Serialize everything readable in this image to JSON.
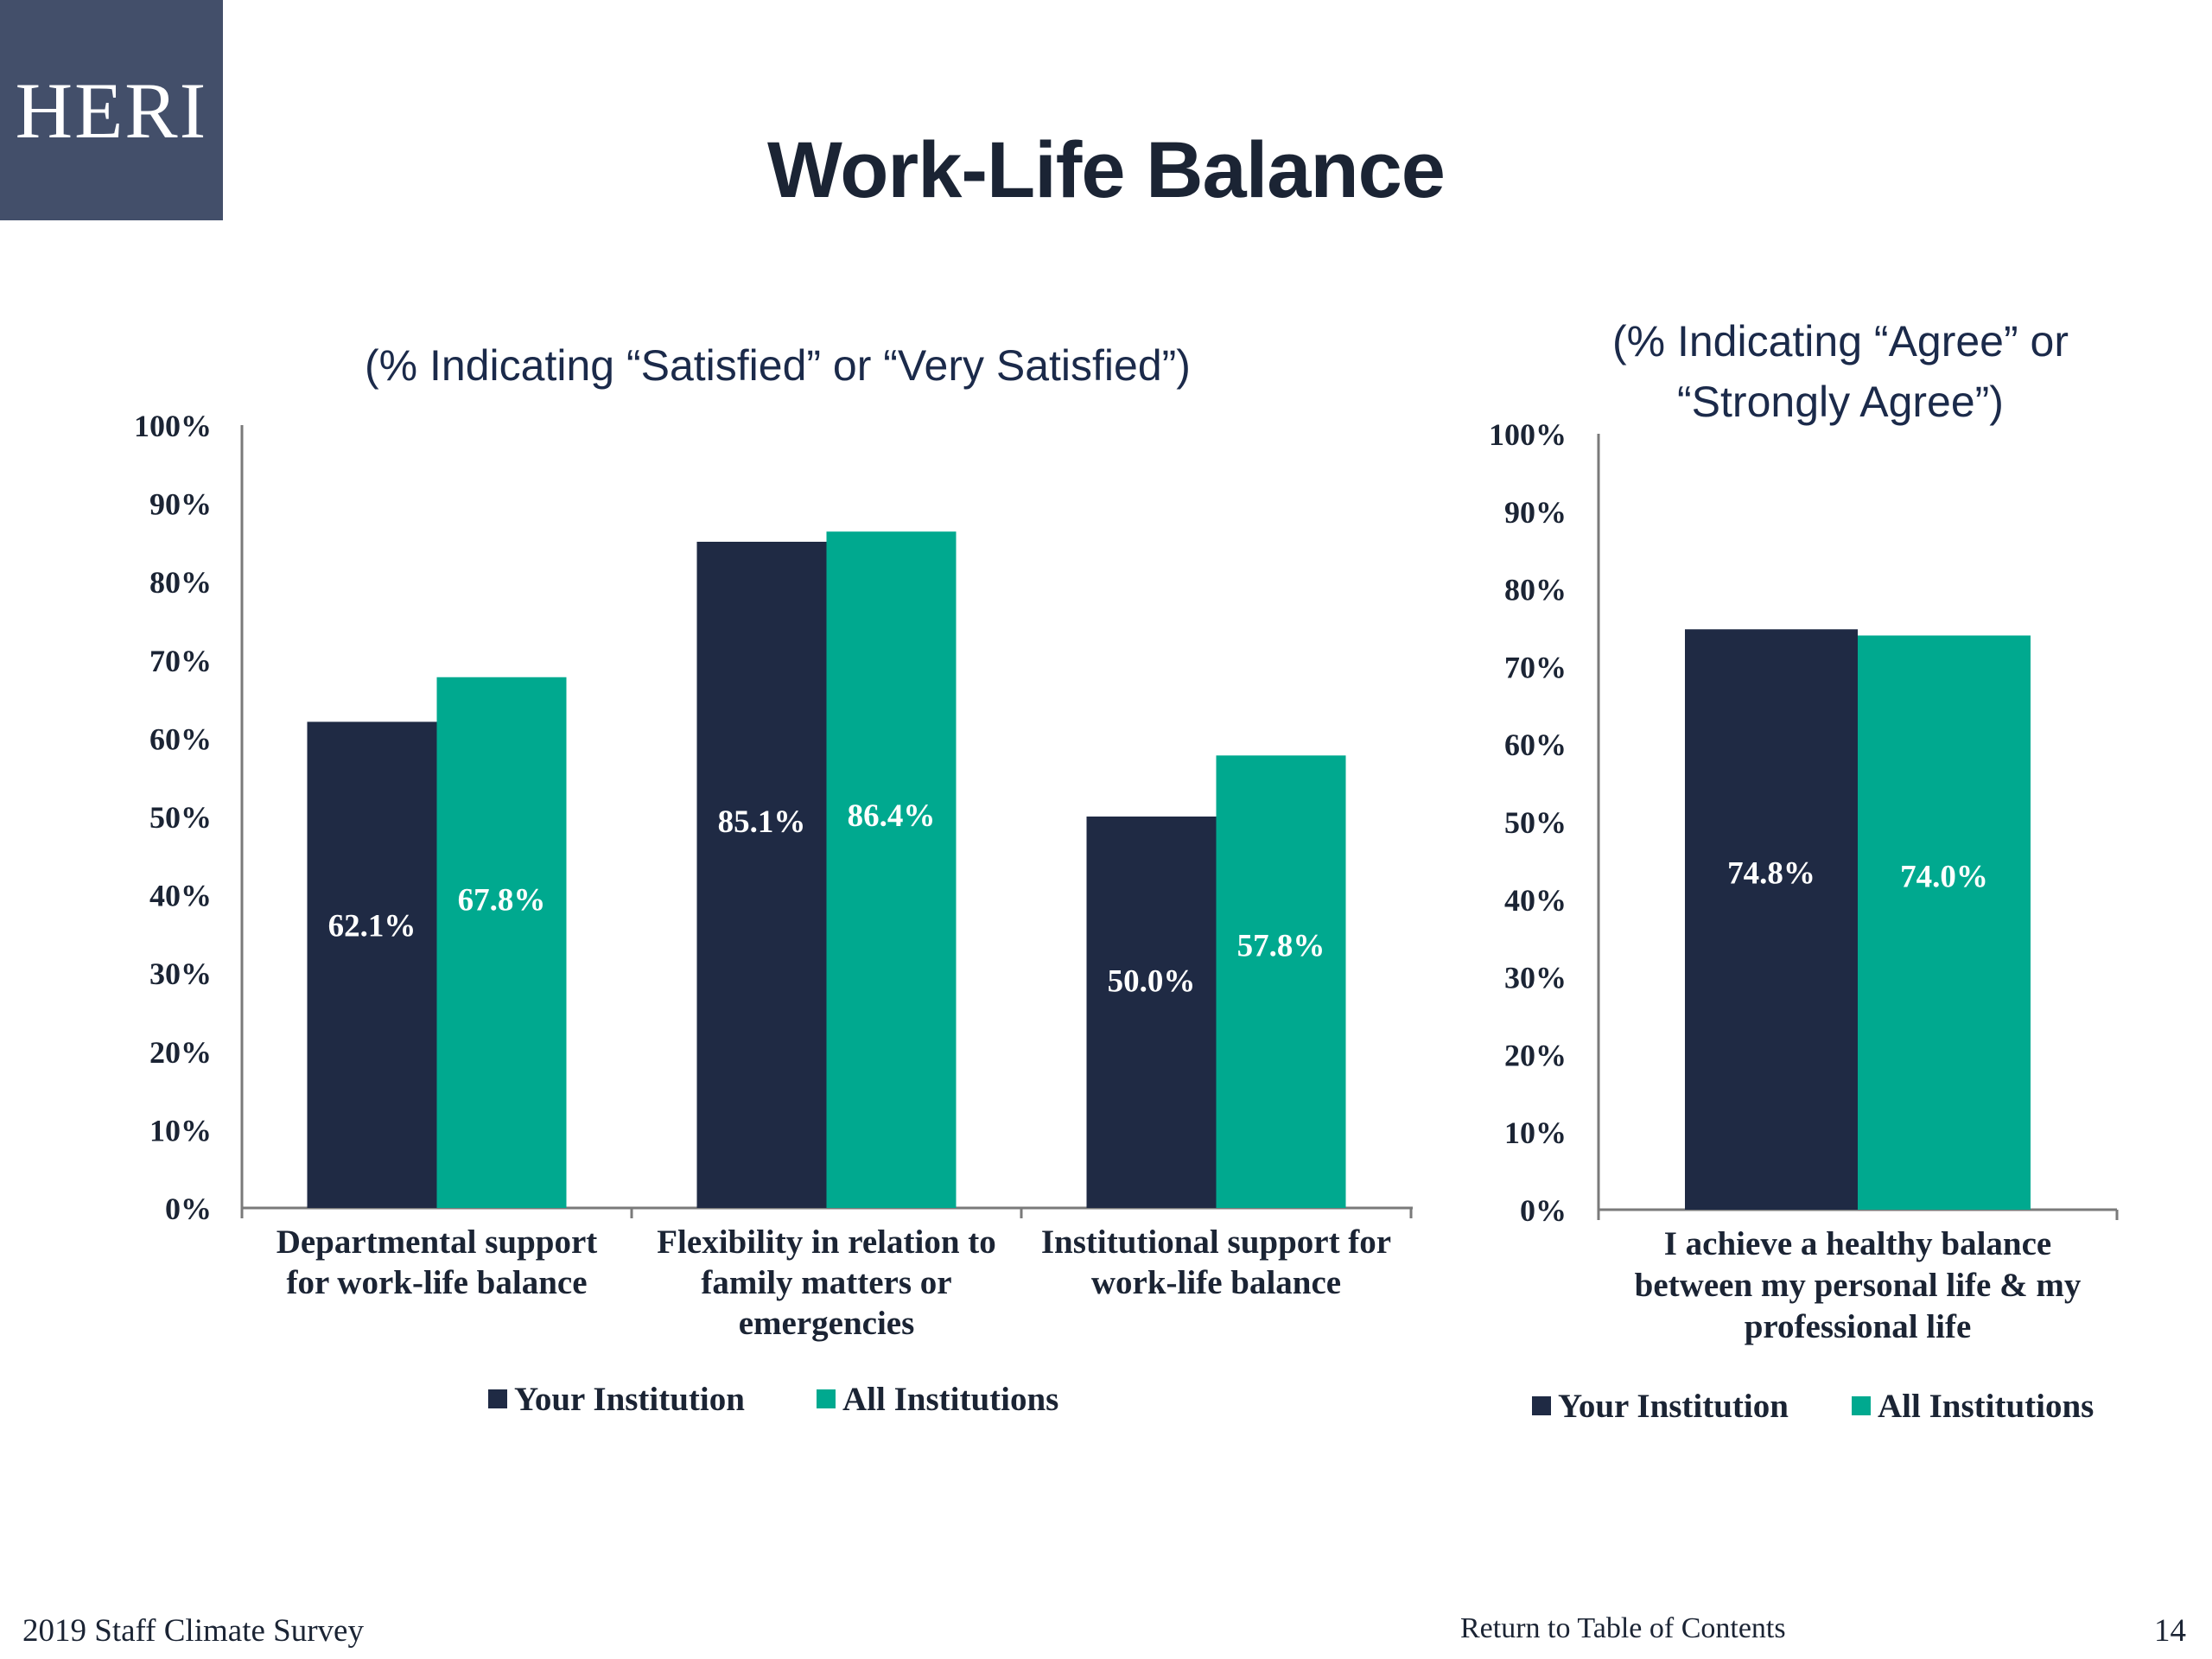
{
  "logo": {
    "text": "HERI"
  },
  "page": {
    "title": "Work-Life Balance"
  },
  "footer": {
    "left": "2019 Staff  Climate Survey",
    "link": "Return to Table of Contents",
    "page_number": "14"
  },
  "colors": {
    "your_institution": "#1f2a44",
    "all_institutions": "#00a98f"
  },
  "chart_data": [
    {
      "type": "bar",
      "title": "(% Indicating “Satisfied” or “Very Satisfied”)",
      "categories": [
        [
          "Departmental support",
          "for work-life balance"
        ],
        [
          "Flexibility in relation to",
          "family matters or",
          "emergencies"
        ],
        [
          "Institutional support for",
          "work-life balance"
        ]
      ],
      "series": [
        {
          "name": "Your Institution",
          "values": [
            62.1,
            85.1,
            50.0
          ],
          "labels": [
            "62.1%",
            "85.1%",
            "50.0%"
          ]
        },
        {
          "name": "All Institutions",
          "values": [
            67.8,
            86.4,
            57.8
          ],
          "labels": [
            "67.8%",
            "86.4%",
            "57.8%"
          ]
        }
      ],
      "ylim": [
        0,
        100
      ],
      "yticks": [
        "0%",
        "10%",
        "20%",
        "30%",
        "40%",
        "50%",
        "60%",
        "70%",
        "80%",
        "90%",
        "100%"
      ],
      "legend": "bottom",
      "grid": false
    },
    {
      "type": "bar",
      "title": "(% Indicating “Agree” or “Strongly Agree”)",
      "categories": [
        [
          "I achieve a healthy balance",
          "between my personal life & my",
          "professional life"
        ]
      ],
      "series": [
        {
          "name": "Your Institution",
          "values": [
            74.8
          ],
          "labels": [
            "74.8%"
          ]
        },
        {
          "name": "All Institutions",
          "values": [
            74.0
          ],
          "labels": [
            "74.0%"
          ]
        }
      ],
      "ylim": [
        0,
        100
      ],
      "yticks": [
        "0%",
        "10%",
        "20%",
        "30%",
        "40%",
        "50%",
        "60%",
        "70%",
        "80%",
        "90%",
        "100%"
      ],
      "legend": "bottom",
      "grid": false
    }
  ]
}
